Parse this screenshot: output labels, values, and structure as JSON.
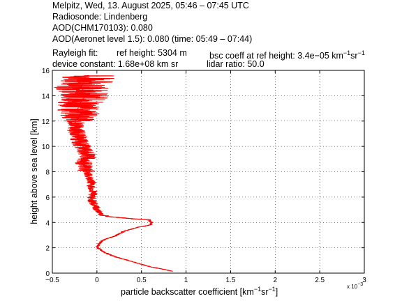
{
  "header": {
    "line1": "Melpitz, Wed, 13. August 2025, 05:46 – 07:45 UTC",
    "line2": "Radiosonde: Lindenberg",
    "line3": "AOD(CHM170103): 0.080",
    "line4": "AOD(Aeronet level 1.5): 0.080   (time: 05:49 – 07:44)",
    "rayleigh_label": "Rayleigh fit:",
    "ref_height": "ref height: 5304 m",
    "bsc_coeff_text": "bsc coeff at ref height: 3.4e−05 km",
    "bsc_unit_sup1": "−1",
    "bsc_unit_sr": "sr",
    "bsc_unit_sup2": "−1",
    "device_constant": "device constant: 1.68e+08 km sr",
    "lidar_ratio": "lidar ratio: 50.0"
  },
  "chart_data": {
    "type": "line",
    "xlabel_main": "particle backscatter coefficient [km",
    "xlabel_sup1": "−1",
    "xlabel_mid": "sr",
    "xlabel_sup2": "−1",
    "xlabel_end": "]",
    "ylabel": "height above sea level [km]",
    "x_scale_note": "x 10",
    "x_scale_exp": "−3",
    "xlim": [
      -0.5,
      3
    ],
    "ylim": [
      0,
      16
    ],
    "xticks": [
      -0.5,
      0,
      0.5,
      1,
      1.5,
      2,
      2.5,
      3
    ],
    "xtick_labels": [
      "−0.5",
      "0",
      "0.5",
      "1",
      "1.5",
      "2",
      "2.5",
      "3"
    ],
    "yticks": [
      0,
      2,
      4,
      6,
      8,
      10,
      12,
      14,
      16
    ],
    "ytick_labels": [
      "0",
      "2",
      "4",
      "6",
      "8",
      "10",
      "12",
      "14",
      "16"
    ],
    "grid": true,
    "line_color": "#ff0000",
    "profile_y": [
      0.15,
      0.3,
      0.5,
      0.7,
      1.0,
      1.3,
      1.6,
      1.9,
      2.1,
      2.3,
      2.5,
      2.7,
      2.9,
      3.1,
      3.3,
      3.6,
      3.8,
      4.0,
      4.2,
      4.35,
      4.5,
      4.7,
      4.9,
      5.1,
      5.4,
      5.7,
      6.0,
      6.3,
      6.6,
      6.9,
      7.2,
      7.5,
      7.8,
      8.1,
      8.4,
      8.7,
      9.0,
      9.3,
      9.6,
      9.9,
      10.2,
      10.5,
      10.8,
      11.1,
      11.4,
      11.7,
      12.0,
      12.3,
      12.6,
      12.9,
      13.2,
      13.5,
      13.8,
      14.1,
      14.4,
      14.7,
      15.0,
      15.3,
      15.6
    ],
    "profile_x": [
      0.00085,
      0.00075,
      0.0006,
      0.0005,
      0.00035,
      0.0002,
      0.0001,
      3e-05,
      0.0,
      2e-05,
      5e-05,
      0.0001,
      0.0002,
      0.00025,
      0.0003,
      0.00045,
      0.0006,
      0.00062,
      0.00058,
      0.0003,
      0.0001,
      3e-05,
      2e-05,
      0.0,
      -3e-05,
      -5e-05,
      -6e-05,
      -4e-05,
      -5e-05,
      -7e-05,
      -6e-05,
      -8e-05,
      -0.0001,
      -0.00012,
      -0.00013,
      -0.00015,
      -0.00012,
      -0.0001,
      -0.00013,
      -0.00015,
      -0.00018,
      -0.0002,
      -0.0002,
      -0.00022,
      -0.00025,
      -0.00022,
      -0.00025,
      -0.0002,
      -0.00018,
      -0.00022,
      -0.0002,
      -0.00018,
      -0.00015,
      -0.00012,
      -0.00015,
      -0.00018,
      -0.00015,
      -0.00012,
      -0.00015
    ]
  }
}
